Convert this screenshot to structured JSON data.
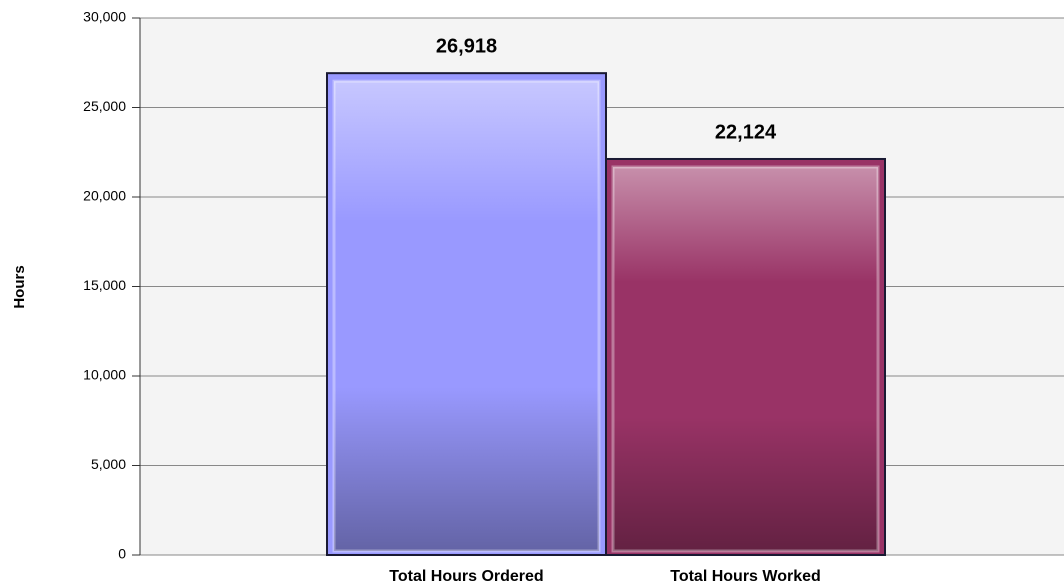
{
  "chart_data": {
    "type": "bar",
    "y_label": "Hours",
    "categories": [
      "Total Hours Ordered",
      "Total Hours Worked"
    ],
    "values": [
      26918,
      22124
    ],
    "value_labels": [
      "26,918",
      "22,124"
    ],
    "colors": [
      "#9999ff",
      "#993366"
    ],
    "ylim": [
      0,
      30000
    ],
    "yticks": [
      0,
      {
        "value": 5000,
        "label": "5,000"
      },
      {
        "value": 10000,
        "label": "10,000"
      },
      {
        "value": 15000,
        "label": "15,000"
      },
      {
        "value": 20000,
        "label": "20,000"
      },
      {
        "value": 25000,
        "label": "25,000"
      },
      {
        "value": 30000,
        "label": "30,000"
      }
    ],
    "grid": true
  }
}
